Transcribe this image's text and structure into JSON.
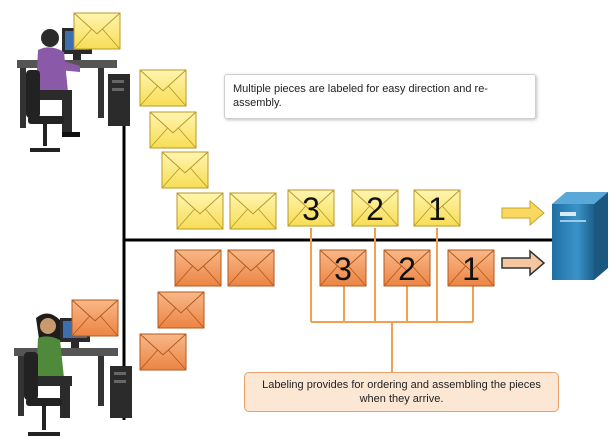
{
  "callouts": {
    "top_text": "Multiple pieces are labeled for easy direction and re-assembly.",
    "bottom_text": "Labeling provides for ordering and assembling the pieces when they arrive."
  },
  "labels": {
    "yellow": [
      "3",
      "2",
      "1"
    ],
    "orange": [
      "3",
      "2",
      "1"
    ]
  },
  "colors": {
    "yellow_envelope": "#fbe97a",
    "orange_envelope": "#f4a36a",
    "orange_connector": "#f0a050",
    "network_line": "#000000",
    "server": "#2c7bb0"
  },
  "icons": {
    "sender_top": "man-at-computer-icon",
    "sender_bottom": "woman-at-computer-icon",
    "receiver": "server-icon"
  }
}
